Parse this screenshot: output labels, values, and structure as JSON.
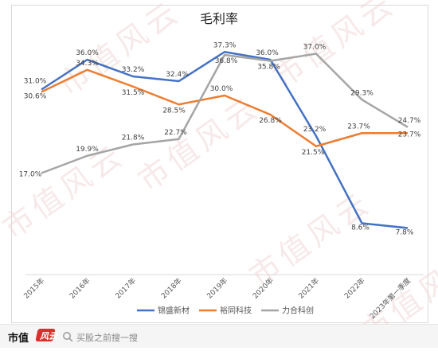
{
  "chart_data": {
    "type": "line",
    "title": "毛利率",
    "categories": [
      "2015年",
      "2016年",
      "2017年",
      "2018年",
      "2019年",
      "2020年",
      "2021年",
      "2022年",
      "2023年第一季度"
    ],
    "series": [
      {
        "name": "锦盛新材",
        "color": "#4472c4",
        "values": [
          31.0,
          36.0,
          33.2,
          32.4,
          37.3,
          36.0,
          23.2,
          8.6,
          7.8
        ],
        "labels": [
          "31.0%",
          "36.0%",
          "33.2%",
          "32.4%",
          "37.3%",
          "36.0%",
          "23.2%",
          "8.6%",
          "7.8%"
        ]
      },
      {
        "name": "裕同科技",
        "color": "#ed7d31",
        "values": [
          30.6,
          34.3,
          31.5,
          28.5,
          30.0,
          26.8,
          21.5,
          23.7,
          23.7
        ],
        "labels": [
          "30.6%",
          "34.3%",
          "31.5%",
          "28.5%",
          "30.0%",
          "26.8%",
          "21.5%",
          "23.7%",
          "23.7%"
        ]
      },
      {
        "name": "力合科创",
        "color": "#a5a5a5",
        "values": [
          17.0,
          19.9,
          21.8,
          22.7,
          36.8,
          35.8,
          37.0,
          29.3,
          24.7
        ],
        "labels": [
          "17.0%",
          "19.9%",
          "21.8%",
          "22.7%",
          "36.8%",
          "35.8%",
          "37.0%",
          "29.3%",
          "24.7%"
        ]
      }
    ],
    "ylim": [
      0,
      42
    ],
    "grid": false,
    "legend": "bottom"
  },
  "footer": {
    "brand": "市值",
    "brand_mark": "风云",
    "search_placeholder": "买股之前搜一搜"
  },
  "watermark_text": "市值风云"
}
